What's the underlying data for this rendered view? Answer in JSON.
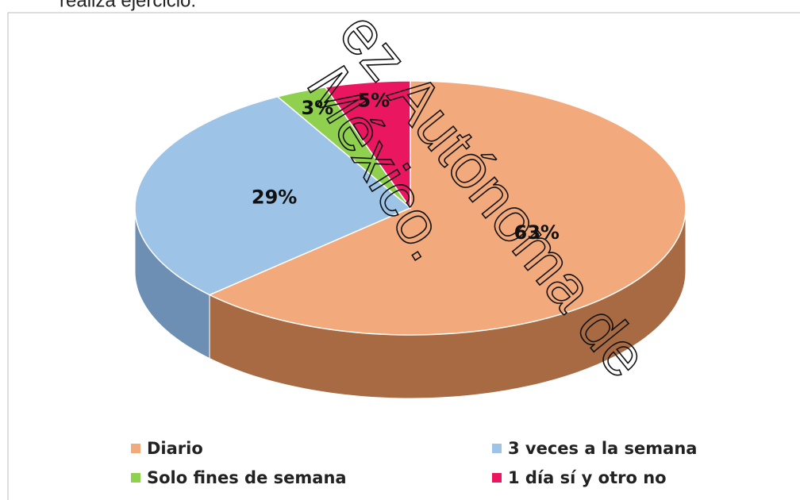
{
  "chart_data": {
    "type": "pie3d",
    "caption": "realiza ejercicio.",
    "watermark": [
      "ez Autónoma de",
      "México."
    ],
    "categories": [
      "Diario",
      "3 veces a la semana",
      "Solo fines de semana",
      "1 día sí y otro no"
    ],
    "values": [
      63,
      29,
      3,
      5
    ],
    "value_labels": [
      "63%",
      "29%",
      "3%",
      "5%"
    ],
    "colors": [
      "#f2aa7c",
      "#9dc3e6",
      "#8fd14f",
      "#ea1760"
    ],
    "side_colors": [
      "#a86a42",
      "#6d8fb3",
      "#5f9a30",
      "#a3103f"
    ],
    "legend": "bottom"
  }
}
